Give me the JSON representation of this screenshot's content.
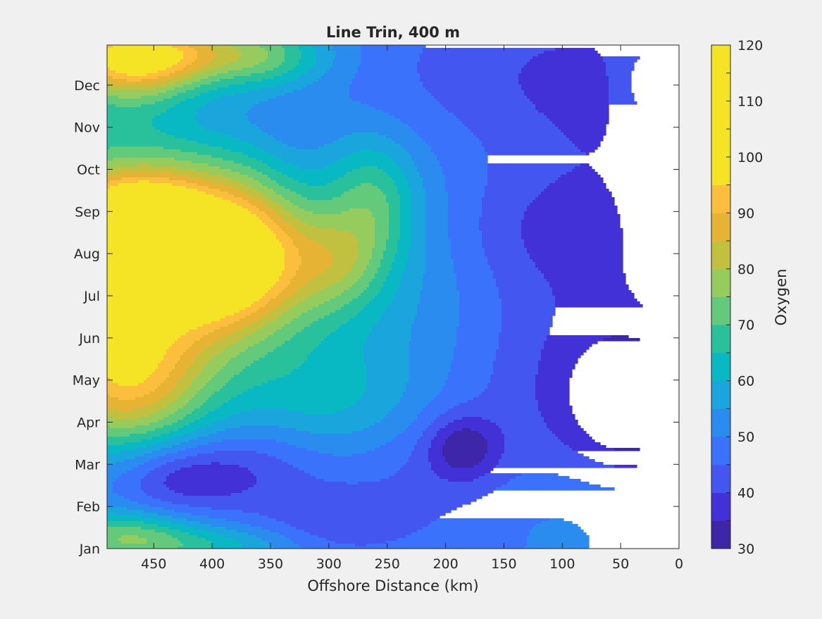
{
  "chart_data": {
    "type": "heatmap",
    "subtype": "filled-contour",
    "title": "Line Trin, 400 m",
    "xlabel": "Offshore Distance (km)",
    "ylabel": "",
    "xlim": [
      490,
      0
    ],
    "x_reversed": true,
    "xticks": [
      450,
      400,
      350,
      300,
      250,
      200,
      150,
      100,
      50,
      0
    ],
    "xtick_labels": [
      "450",
      "400",
      "350",
      "300",
      "250",
      "200",
      "150",
      "100",
      "50",
      "0"
    ],
    "ytick_labels": [
      "Jan",
      "Feb",
      "Mar",
      "Apr",
      "May",
      "Jun",
      "Jul",
      "Aug",
      "Sep",
      "Oct",
      "Nov",
      "Dec"
    ],
    "ytick_values": [
      1,
      2,
      3,
      4,
      5,
      6,
      7,
      8,
      9,
      10,
      11,
      12
    ],
    "ylim": [
      1,
      12.95
    ],
    "data_extent_x": [
      490,
      30
    ],
    "colorbar": {
      "label": "Oxygen",
      "min": 30,
      "max": 120,
      "step": 5,
      "tick_values": [
        30,
        40,
        50,
        60,
        70,
        80,
        90,
        100,
        110,
        120
      ],
      "tick_labels": [
        "30",
        "40",
        "50",
        "60",
        "70",
        "80",
        "90",
        "100",
        "110",
        "120"
      ],
      "colors": [
        "#3e26a8",
        "#4231d6",
        "#4456f0",
        "#3b72fb",
        "#2b8cf0",
        "#1aa5dc",
        "#08b8c3",
        "#29c19c",
        "#63c97b",
        "#96cb5e",
        "#c1c13f",
        "#e6b335",
        "#fbbe3d",
        "#f5e425"
      ]
    },
    "grid": false,
    "features": [
      {
        "x": 465,
        "y": 8.3,
        "value": 116,
        "sx": 32,
        "sy": 0.75
      },
      {
        "x": 450,
        "y": 8.2,
        "value": 96,
        "sx": 95,
        "sy": 1.85
      },
      {
        "x": 385,
        "y": 7.8,
        "value": 80,
        "sx": 45,
        "sy": 1.1
      },
      {
        "x": 475,
        "y": 5.0,
        "value": 86,
        "sx": 50,
        "sy": 1.2
      },
      {
        "x": 470,
        "y": 12.5,
        "value": 83,
        "sx": 45,
        "sy": 0.7
      },
      {
        "x": 430,
        "y": 12.8,
        "value": 74,
        "sx": 70,
        "sy": 0.5
      },
      {
        "x": 480,
        "y": 1.3,
        "value": 70,
        "sx": 45,
        "sy": 0.45
      },
      {
        "x": 410,
        "y": 1.05,
        "value": 62,
        "sx": 60,
        "sy": 0.35
      },
      {
        "x": 290,
        "y": 7.8,
        "value": 64,
        "sx": 28,
        "sy": 0.8
      },
      {
        "x": 260,
        "y": 9.3,
        "value": 64,
        "sx": 25,
        "sy": 1.0
      },
      {
        "x": 350,
        "y": 12.6,
        "value": 62,
        "sx": 35,
        "sy": 0.6
      },
      {
        "x": 300,
        "y": 4.5,
        "value": 58,
        "sx": 55,
        "sy": 0.9
      },
      {
        "x": 230,
        "y": 6.0,
        "value": 55,
        "sx": 110,
        "sy": 3.2
      },
      {
        "x": 430,
        "y": 2.7,
        "value": 36,
        "sx": 40,
        "sy": 0.6
      },
      {
        "x": 360,
        "y": 2.9,
        "value": 41,
        "sx": 45,
        "sy": 0.8
      },
      {
        "x": 300,
        "y": 1.6,
        "value": 42,
        "sx": 40,
        "sy": 0.6
      },
      {
        "x": 230,
        "y": 2.5,
        "value": 43,
        "sx": 50,
        "sy": 1.3
      },
      {
        "x": 185,
        "y": 3.4,
        "value": 35,
        "sx": 22,
        "sy": 0.55
      },
      {
        "x": 90,
        "y": 4.8,
        "value": 38,
        "sx": 80,
        "sy": 2.0
      },
      {
        "x": 40,
        "y": 4.5,
        "value": 32,
        "sx": 30,
        "sy": 0.9
      },
      {
        "x": 130,
        "y": 12.3,
        "value": 42,
        "sx": 120,
        "sy": 1.4
      },
      {
        "x": 60,
        "y": 9.5,
        "value": 43,
        "sx": 70,
        "sy": 3.0
      },
      {
        "x": 130,
        "y": 8.6,
        "value": 43,
        "sx": 55,
        "sy": 1.1
      },
      {
        "x": 400,
        "y": 11.0,
        "value": 45,
        "sx": 50,
        "sy": 0.9
      },
      {
        "x": 330,
        "y": 10.3,
        "value": 46,
        "sx": 25,
        "sy": 1.2
      },
      {
        "x": 100,
        "y": 1.8,
        "value": 53,
        "sx": 40,
        "sy": 0.8
      },
      {
        "x": 35,
        "y": 12.0,
        "value": 56,
        "sx": 15,
        "sy": 0.8
      }
    ]
  }
}
